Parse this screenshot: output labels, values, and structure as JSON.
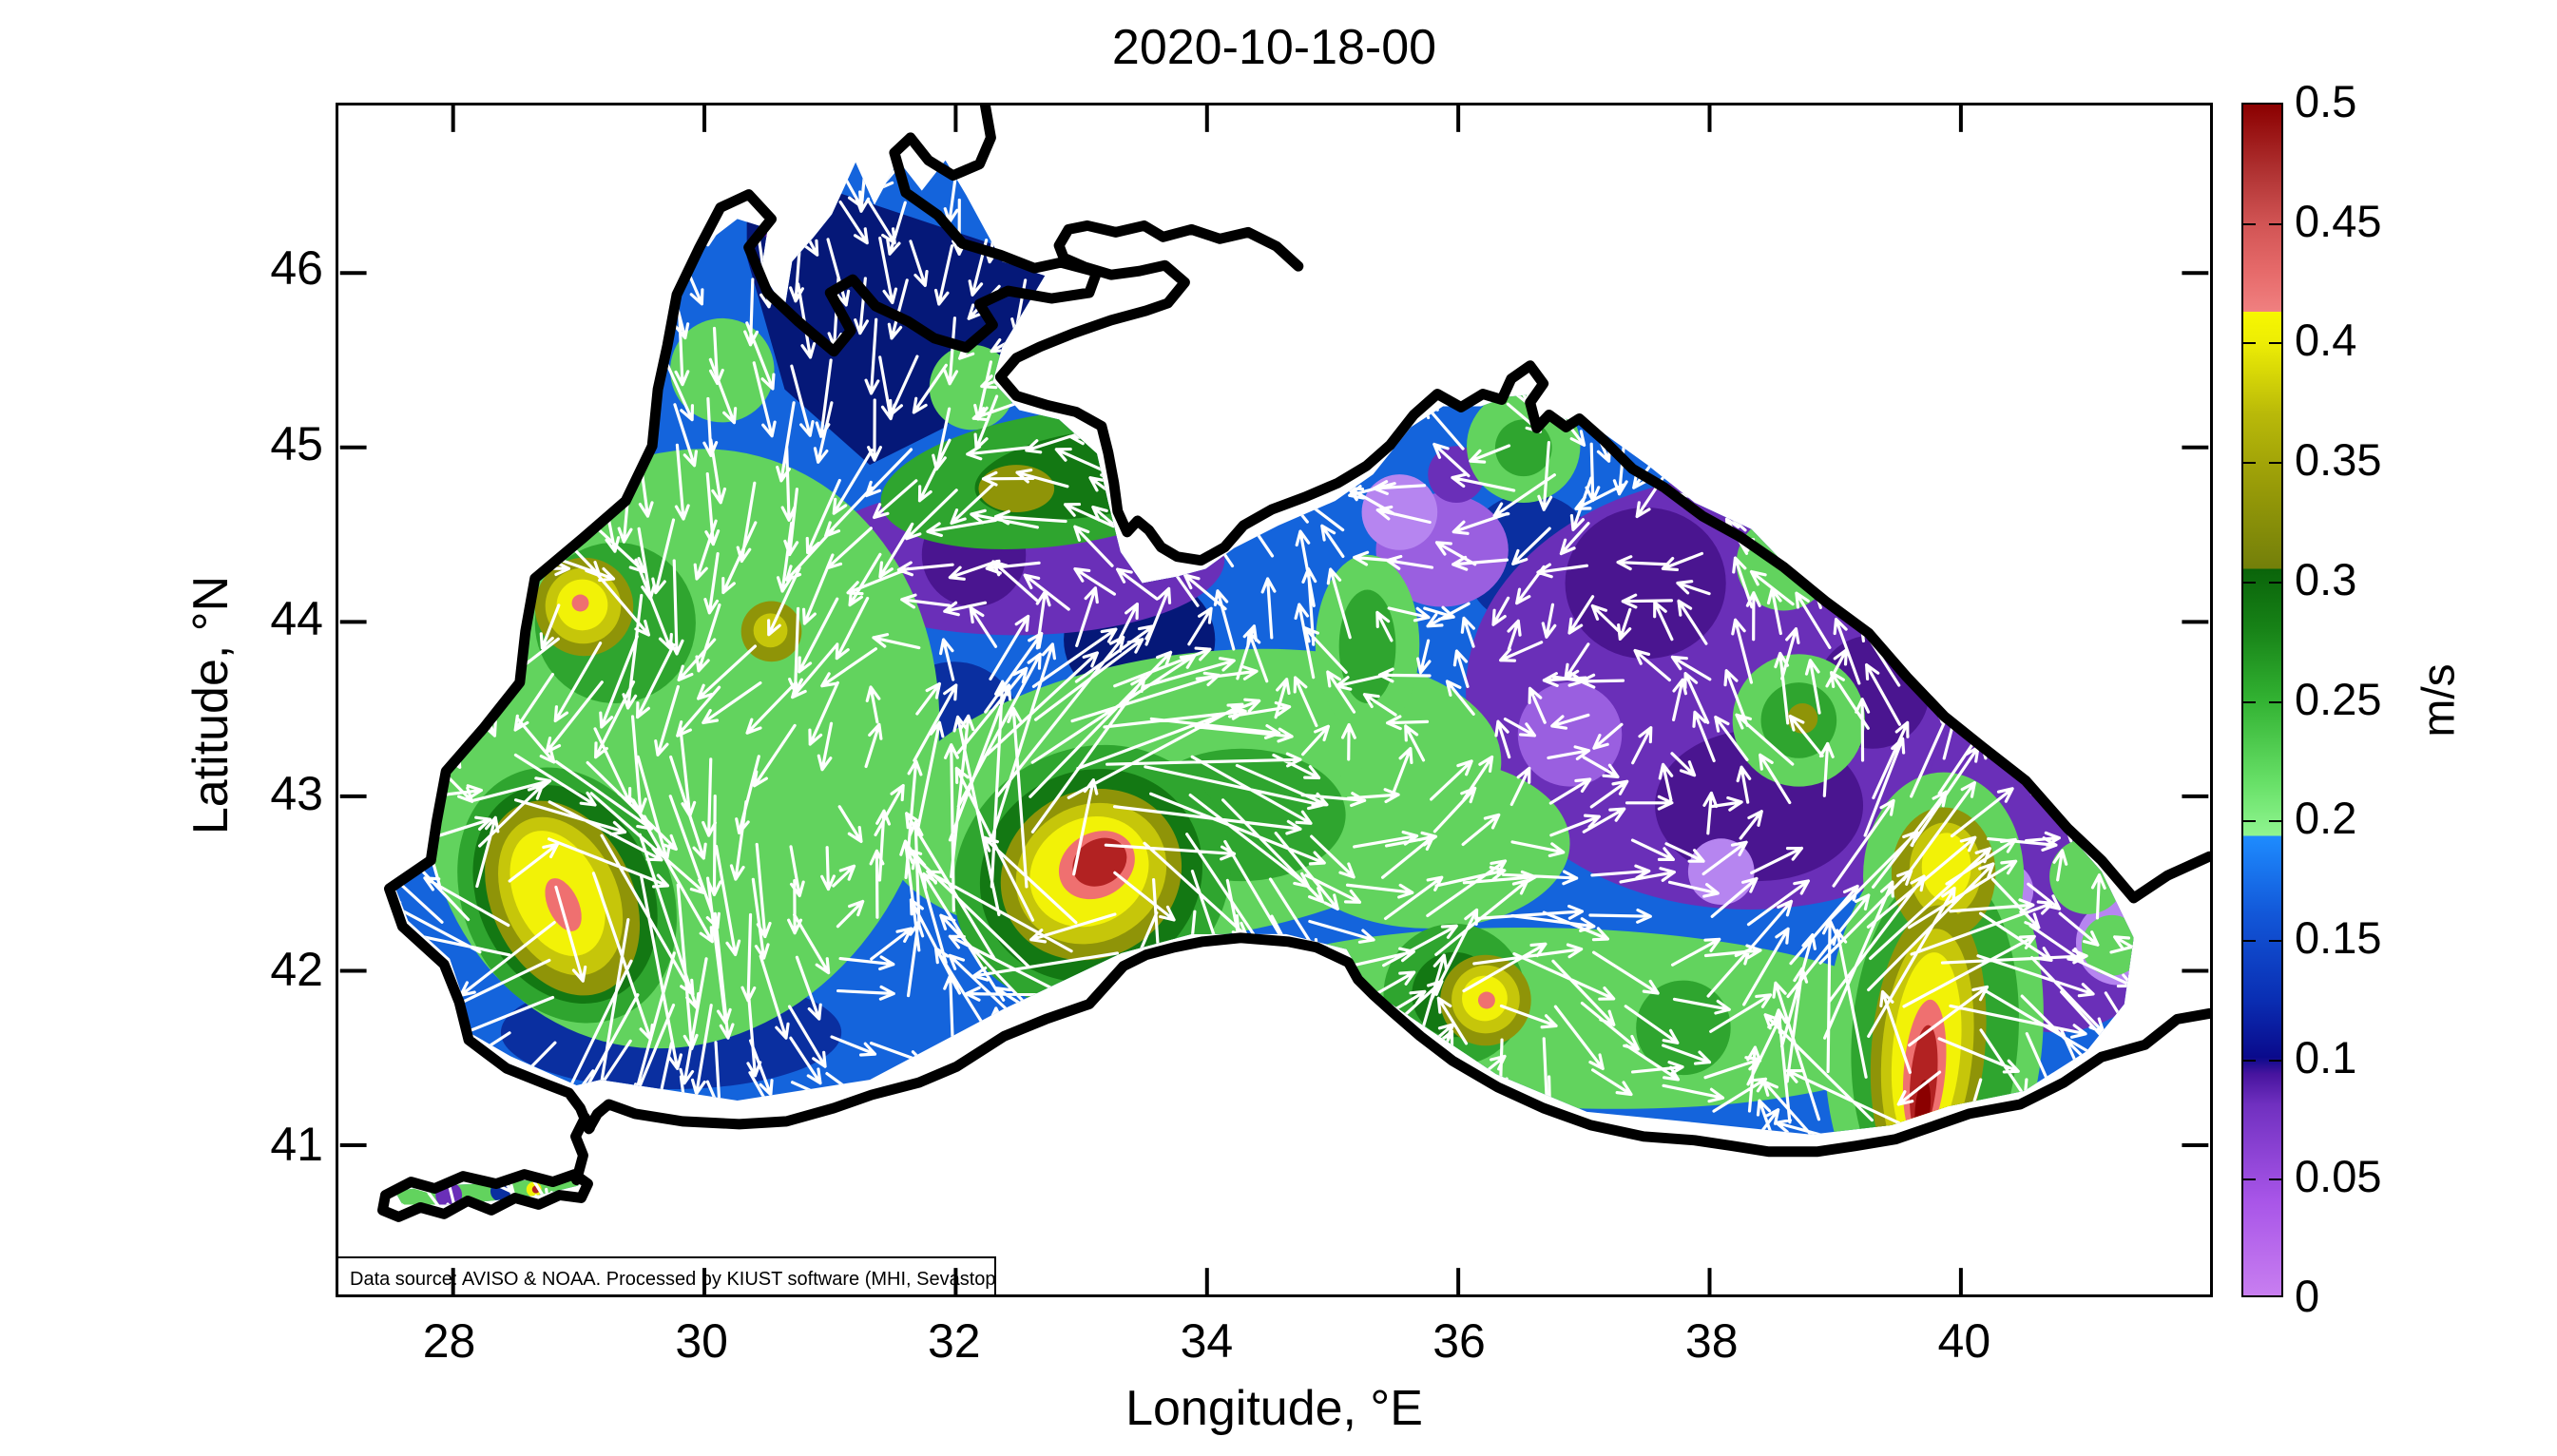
{
  "title": "2020-10-18-00",
  "axes": {
    "x": {
      "label": "Longitude, °E",
      "ticks": [
        "28",
        "30",
        "32",
        "34",
        "36",
        "38",
        "40"
      ],
      "tick_values": [
        28,
        30,
        32,
        34,
        36,
        38,
        40
      ],
      "range": [
        27.1,
        41.97
      ]
    },
    "y": {
      "label": "Latitude, °N",
      "ticks": [
        "41",
        "42",
        "43",
        "44",
        "45",
        "46"
      ],
      "tick_values": [
        41,
        42,
        43,
        44,
        45,
        46
      ],
      "range": [
        40.145,
        46.96
      ]
    }
  },
  "colorbar": {
    "unit": "m/s",
    "min": 0,
    "max": 0.5,
    "tick_labels": [
      "0.5",
      "0.45",
      "0.4",
      "0.35",
      "0.3",
      "0.25",
      "0.2",
      "0.15",
      "0.1",
      "0.05",
      "0"
    ],
    "tick_values": [
      0.5,
      0.45,
      0.4,
      0.35,
      0.3,
      0.25,
      0.2,
      0.15,
      0.1,
      0.05,
      0
    ],
    "stops": [
      [
        0,
        "#c87ef0"
      ],
      [
        0.04,
        "#a855e8"
      ],
      [
        0.08,
        "#7030c0"
      ],
      [
        0.093,
        "#47149e"
      ],
      [
        0.1,
        "#0a0a8c"
      ],
      [
        0.125,
        "#0a2fb4"
      ],
      [
        0.16,
        "#1257d8"
      ],
      [
        0.193,
        "#1e8cff"
      ],
      [
        0.193,
        "#90f590"
      ],
      [
        0.215,
        "#68e068"
      ],
      [
        0.25,
        "#32b232"
      ],
      [
        0.28,
        "#178217"
      ],
      [
        0.305,
        "#0a640a"
      ],
      [
        0.305,
        "#737f0a"
      ],
      [
        0.34,
        "#989b08"
      ],
      [
        0.37,
        "#b9b909"
      ],
      [
        0.4,
        "#eded05"
      ],
      [
        0.413,
        "#f7f700"
      ],
      [
        0.413,
        "#f08080"
      ],
      [
        0.43,
        "#e66a6a"
      ],
      [
        0.45,
        "#d15454"
      ],
      [
        0.47,
        "#b23535"
      ],
      [
        0.5,
        "#8b0000"
      ]
    ]
  },
  "annotation": {
    "text": "Data source: AVISO & NOAA. Processed by KIUST software (MHI, Sevastopol)"
  },
  "chart_data": {
    "type": "heatmap",
    "title": "2020-10-18-00",
    "region": "Black Sea",
    "field": "Sea surface current speed (filled contours) with current velocity vectors (white quiver arrows)",
    "xlabel": "Longitude, °E",
    "ylabel": "Latitude, °N",
    "xlim": [
      27.1,
      41.97
    ],
    "ylim": [
      40.145,
      46.96
    ],
    "x_ticks": [
      28,
      30,
      32,
      34,
      36,
      38,
      40
    ],
    "y_ticks": [
      41,
      42,
      43,
      44,
      45,
      46
    ],
    "colorbar_label": "m/s",
    "color_scale": {
      "min": 0,
      "max": 0.5,
      "tick_step": 0.05,
      "levels": [
        [
          0.0,
          "violet"
        ],
        [
          0.05,
          "purple"
        ],
        [
          0.1,
          "navy"
        ],
        [
          0.15,
          "blue"
        ],
        [
          0.2,
          "light green"
        ],
        [
          0.25,
          "green"
        ],
        [
          0.3,
          "dark green / olive"
        ],
        [
          0.35,
          "dark yellow"
        ],
        [
          0.4,
          "yellow"
        ],
        [
          0.45,
          "red"
        ],
        [
          0.5,
          "dark red"
        ]
      ]
    },
    "no_data_regions": [
      "Sea of Azov",
      "narrow strips along the coastline",
      "south-eastern corner near shore"
    ],
    "features": [
      {
        "name": "central basin anticyclonic eddy",
        "lon": 33.1,
        "lat": 42.6,
        "peak_speed_ms": 0.5
      },
      {
        "name": "western coastal eddy (off Bulgaria)",
        "lon": 28.9,
        "lat": 42.4,
        "peak_speed_ms": 0.46
      },
      {
        "name": "south-eastern (Batumi) coastal jet",
        "lon": 39.85,
        "lat": 41.6,
        "peak_speed_ms": 0.5
      },
      {
        "name": "north-western shelf speed maximum",
        "lon": 29.05,
        "lat": 44.1,
        "peak_speed_ms": 0.42
      },
      {
        "name": "southern coast speed maximum",
        "lon": 36.25,
        "lat": 41.85,
        "peak_speed_ms": 0.42
      },
      {
        "name": "south-eastern offshore maximum",
        "lon": 39.9,
        "lat": 42.55,
        "peak_speed_ms": 0.4
      },
      {
        "name": "eastern basin quiescent region",
        "lon": 37.8,
        "lat": 43.5,
        "peak_speed_ms": 0.05
      },
      {
        "name": "north-western (Odessa) low-speed region",
        "lon": 31.2,
        "lat": 46.2,
        "peak_speed_ms": 0.12
      },
      {
        "name": "region west of Crimea, low speeds",
        "lon": 32.5,
        "lat": 44.3,
        "peak_speed_ms": 0.08
      }
    ],
    "annotation": "Data source: AVISO & NOAA. Processed by KIUST software (MHI, Sevastopol)"
  }
}
